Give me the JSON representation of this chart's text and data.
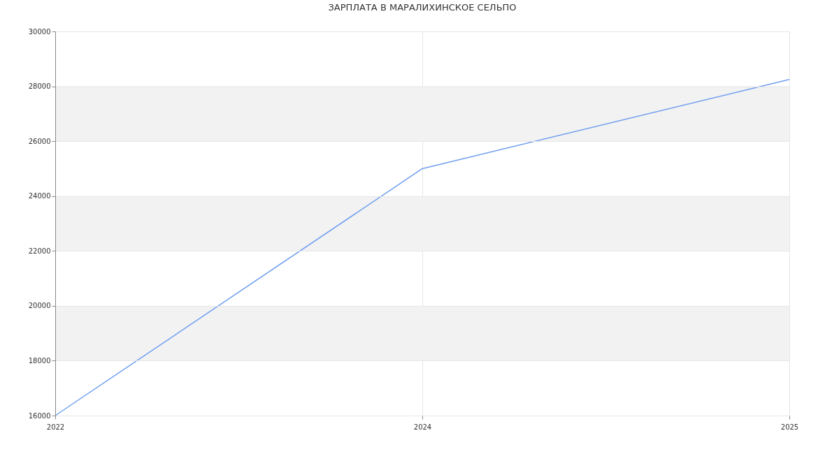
{
  "chart_data": {
    "type": "line",
    "title": "ЗАРПЛАТА В МАРАЛИХИНСКОЕ СЕЛЬПО",
    "categories": [
      "2022",
      "2024",
      "2025"
    ],
    "series": [
      {
        "color": "#6f9ef0",
        "values": [
          16000,
          25000,
          28250
        ]
      }
    ],
    "ylim": [
      16000,
      30000
    ],
    "yticks": [
      16000,
      18000,
      20000,
      22000,
      24000,
      26000,
      28000,
      30000
    ],
    "bands": [
      {
        "axis": "y",
        "from": 18000,
        "to": 20000,
        "color": "#f2f2f2"
      },
      {
        "axis": "y",
        "from": 22000,
        "to": 24000,
        "color": "#f2f2f2"
      },
      {
        "axis": "y",
        "from": 26000,
        "to": 28000,
        "color": "#f2f2f2"
      }
    ],
    "grid": true,
    "marker": "none",
    "line_style": "solid"
  }
}
